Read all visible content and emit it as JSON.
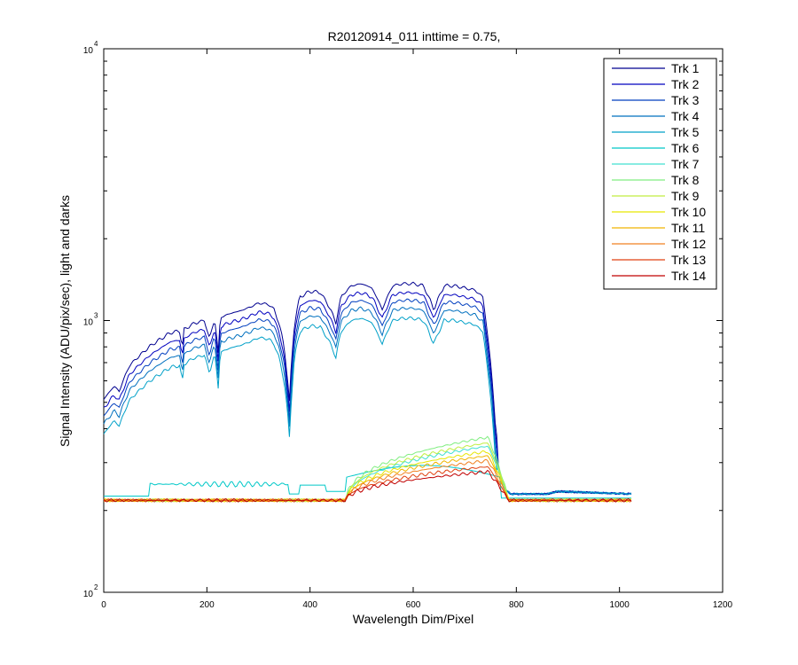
{
  "chart_data": {
    "type": "line",
    "title": "R20120914_011 inttime = 0.75,",
    "xlabel": "Wavelength Dim/Pixel",
    "ylabel": "Signal Intensity (ADU/pix/sec), light and darks",
    "xlim": [
      0,
      1200
    ],
    "ylim": [
      100,
      10000
    ],
    "yscale": "log",
    "x_ticks": [
      "0",
      "200",
      "400",
      "600",
      "800",
      "1000",
      "1200"
    ],
    "y_ticks": [
      {
        "base": "10",
        "exp": "2",
        "value": 100
      },
      {
        "base": "10",
        "exp": "3",
        "value": 1000
      },
      {
        "base": "10",
        "exp": "4",
        "value": 10000
      }
    ],
    "grid": false,
    "legend_position": "top-right",
    "series": [
      {
        "name": "Trk 1",
        "color": "#00008f",
        "profile": "light",
        "scale": 1.22
      },
      {
        "name": "Trk 2",
        "color": "#0000bf",
        "profile": "light",
        "scale": 1.13
      },
      {
        "name": "Trk 3",
        "color": "#003fbf",
        "profile": "light",
        "scale": 1.06
      },
      {
        "name": "Trk 4",
        "color": "#0070bf",
        "profile": "light",
        "scale": 0.99
      },
      {
        "name": "Trk 5",
        "color": "#00a0c8",
        "profile": "light",
        "scale": 0.91
      },
      {
        "name": "Trk 6",
        "color": "#00c8c8",
        "profile": "stray",
        "peak": 300
      },
      {
        "name": "Trk 7",
        "color": "#40e0d0",
        "profile": "dark",
        "peak": 345
      },
      {
        "name": "Trk 8",
        "color": "#80ee80",
        "profile": "dark",
        "peak": 372
      },
      {
        "name": "Trk 9",
        "color": "#c0ee40",
        "profile": "dark",
        "peak": 355
      },
      {
        "name": "Trk 10",
        "color": "#e6e600",
        "profile": "dark",
        "peak": 330
      },
      {
        "name": "Trk 11",
        "color": "#f0b400",
        "profile": "dark",
        "peak": 318
      },
      {
        "name": "Trk 12",
        "color": "#f08020",
        "profile": "dark",
        "peak": 305
      },
      {
        "name": "Trk 13",
        "color": "#e04010",
        "profile": "dark",
        "peak": 290
      },
      {
        "name": "Trk 14",
        "color": "#c00000",
        "profile": "dark",
        "peak": 278
      }
    ],
    "light_profile": [
      [
        0,
        420
      ],
      [
        8,
        440
      ],
      [
        20,
        470
      ],
      [
        30,
        450
      ],
      [
        50,
        560
      ],
      [
        70,
        610
      ],
      [
        90,
        660
      ],
      [
        110,
        700
      ],
      [
        130,
        740
      ],
      [
        148,
        750
      ],
      [
        152,
        640
      ],
      [
        156,
        760
      ],
      [
        175,
        800
      ],
      [
        195,
        820
      ],
      [
        205,
        700
      ],
      [
        215,
        830
      ],
      [
        222,
        620
      ],
      [
        226,
        840
      ],
      [
        245,
        870
      ],
      [
        265,
        890
      ],
      [
        285,
        920
      ],
      [
        300,
        950
      ],
      [
        320,
        940
      ],
      [
        330,
        900
      ],
      [
        340,
        800
      ],
      [
        350,
        650
      ],
      [
        360,
        410
      ],
      [
        370,
        800
      ],
      [
        380,
        1000
      ],
      [
        400,
        1050
      ],
      [
        420,
        1040
      ],
      [
        440,
        900
      ],
      [
        450,
        800
      ],
      [
        460,
        1000
      ],
      [
        480,
        1100
      ],
      [
        500,
        1120
      ],
      [
        520,
        1080
      ],
      [
        540,
        900
      ],
      [
        560,
        1100
      ],
      [
        580,
        1120
      ],
      [
        600,
        1120
      ],
      [
        620,
        1100
      ],
      [
        640,
        900
      ],
      [
        660,
        1100
      ],
      [
        680,
        1100
      ],
      [
        700,
        1080
      ],
      [
        720,
        1060
      ],
      [
        735,
        1000
      ],
      [
        745,
        700
      ],
      [
        760,
        320
      ],
      [
        775,
        240
      ],
      [
        790,
        230
      ],
      [
        860,
        230
      ],
      [
        880,
        235
      ],
      [
        1024,
        230
      ]
    ],
    "dark_level": 218
  }
}
